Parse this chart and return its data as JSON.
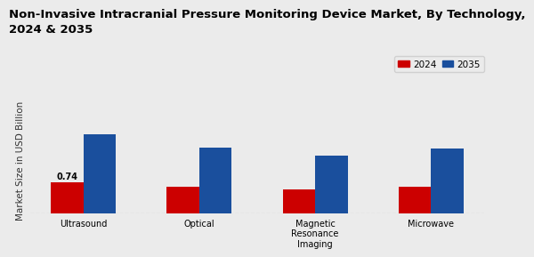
{
  "title": "Non-Invasive Intracranial Pressure Monitoring Device Market, By Technology,\n2024 & 2035",
  "ylabel": "Market Size in USD Billion",
  "categories": [
    "Ultrasound",
    "Optical",
    "Magnetic\nResonance\nImaging",
    "Microwave"
  ],
  "values_2024": [
    0.74,
    0.63,
    0.57,
    0.62
  ],
  "values_2035": [
    1.85,
    1.55,
    1.35,
    1.52
  ],
  "color_2024": "#cc0000",
  "color_2035": "#1a4f9d",
  "annotation_value": "0.74",
  "annotation_bar": 0,
  "background_color": "#ebebeb",
  "plot_bg_color": "#ebebeb",
  "legend_labels": [
    "2024",
    "2035"
  ],
  "bar_width": 0.28,
  "title_fontsize": 9.5,
  "axis_label_fontsize": 7.5,
  "tick_fontsize": 7,
  "legend_fontsize": 7.5,
  "ylim_max": 2.5
}
